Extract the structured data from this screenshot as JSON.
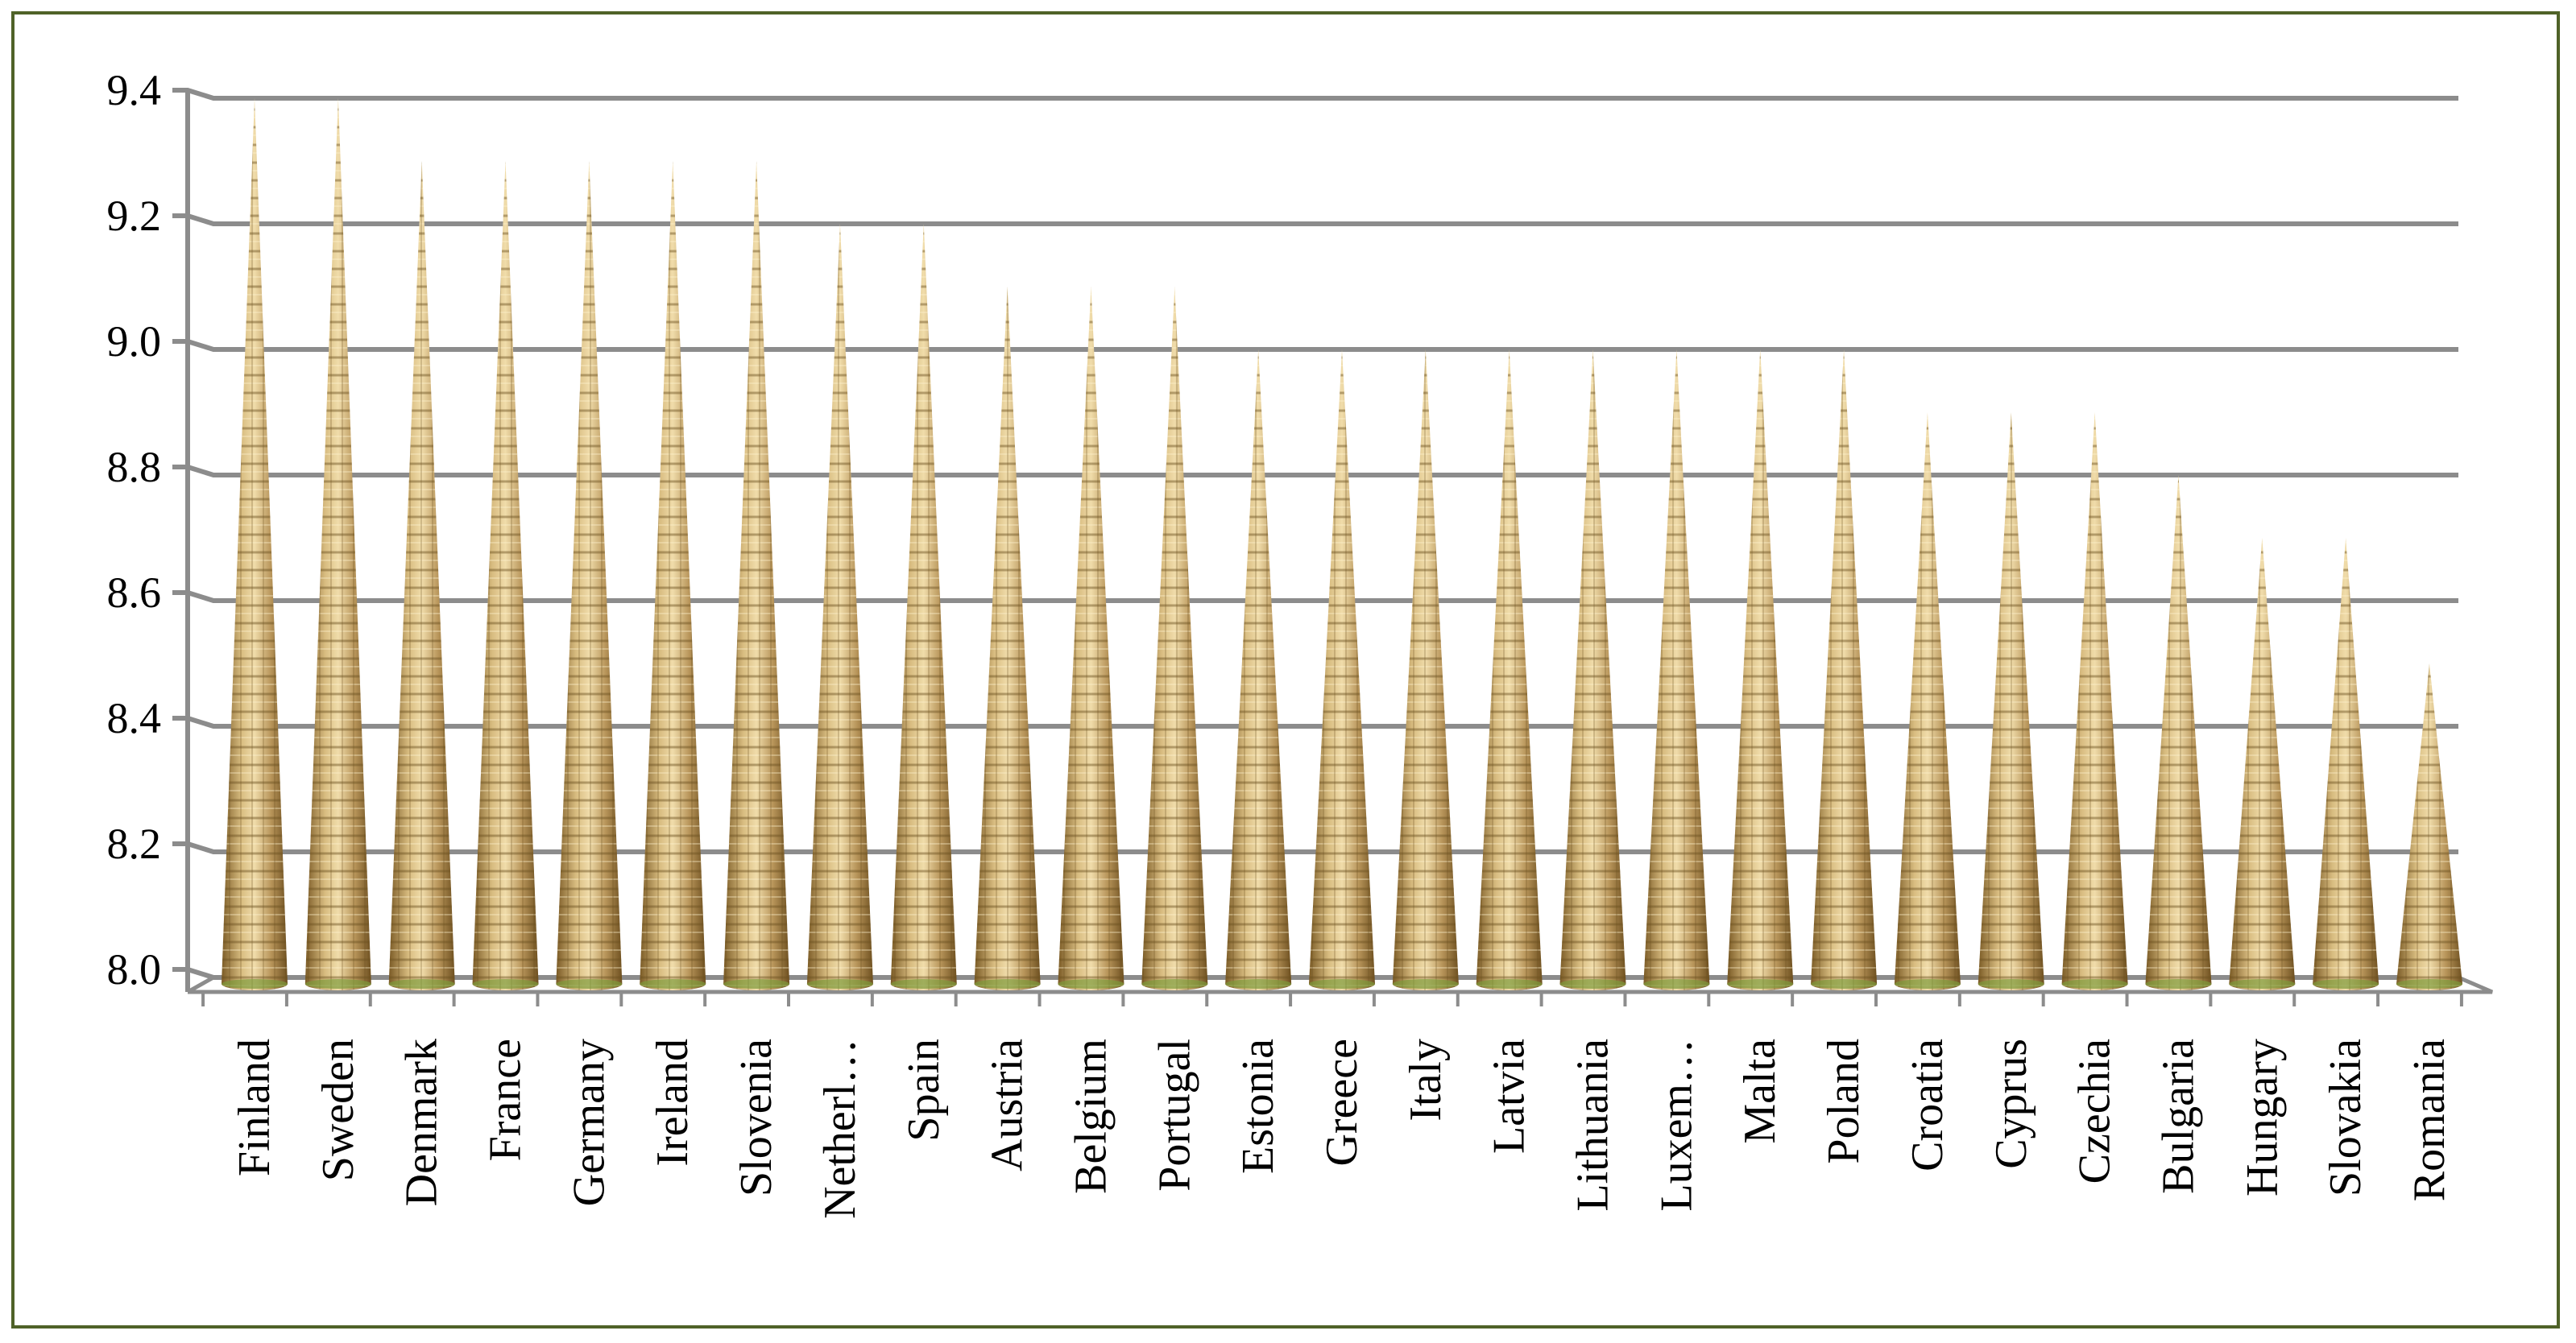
{
  "chart_data": {
    "type": "bar",
    "style": "3d-cone",
    "categories": [
      "Finland",
      "Sweden",
      "Denmark",
      "France",
      "Germany",
      "Ireland",
      "Slovenia",
      "Netherl…",
      "Spain",
      "Austria",
      "Belgium",
      "Portugal",
      "Estonia",
      "Greece",
      "Italy",
      "Latvia",
      "Lithuania",
      "Luxem…",
      "Malta",
      "Poland",
      "Croatia",
      "Cyprus",
      "Czechia",
      "Bulgaria",
      "Hungary",
      "Slovakia",
      "Romania"
    ],
    "values": [
      9.4,
      9.4,
      9.3,
      9.3,
      9.3,
      9.3,
      9.3,
      9.2,
      9.2,
      9.1,
      9.1,
      9.1,
      9.0,
      9.0,
      9.0,
      9.0,
      9.0,
      9.0,
      9.0,
      9.0,
      8.9,
      8.9,
      8.9,
      8.8,
      8.7,
      8.7,
      8.5
    ],
    "ylim": [
      8.0,
      9.4
    ],
    "yticks": [
      "8.0",
      "8.2",
      "8.4",
      "8.6",
      "8.8",
      "9.0",
      "9.2",
      "9.4"
    ],
    "grid": true,
    "legend": "none",
    "colors": {
      "cone": "#c8a868",
      "cone_dark": "#8a6a30",
      "grid": "#8c8c8c",
      "frame": "#4f6228"
    }
  }
}
